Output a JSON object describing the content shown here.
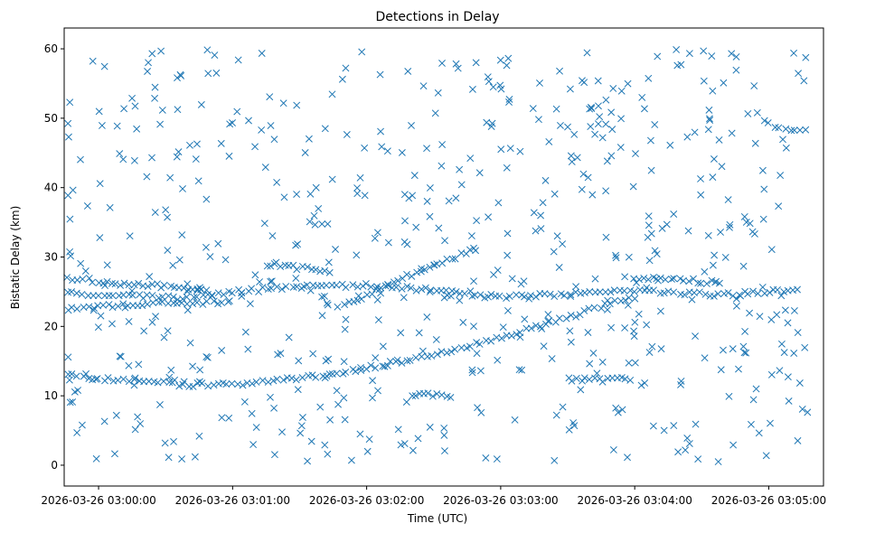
{
  "chart_data": {
    "type": "scatter",
    "title": "Detections in Delay",
    "xlabel": "Time (UTC)",
    "ylabel": "Bistatic Delay (km)",
    "x_unit": "seconds after 2026-03-26 03:00:00 UTC",
    "xlim": [
      -15.4,
      324.5
    ],
    "ylim": [
      -3.0,
      63.0
    ],
    "xticks": [
      {
        "value": 0,
        "label": "2026-03-26 03:00:00"
      },
      {
        "value": 60,
        "label": "2026-03-26 03:01:00"
      },
      {
        "value": 120,
        "label": "2026-03-26 03:02:00"
      },
      {
        "value": 180,
        "label": "2026-03-26 03:03:00"
      },
      {
        "value": 240,
        "label": "2026-03-26 03:04:00"
      },
      {
        "value": 300,
        "label": "2026-03-26 03:05:00"
      }
    ],
    "yticks": [
      0,
      10,
      20,
      30,
      40,
      50,
      60
    ],
    "marker": "x",
    "color": "#1f77b4",
    "series": [
      {
        "name": "detections",
        "description": "Scatter of radar detections; values sampled along visible tracks plus background clutter",
        "tracks": [
          {
            "name": "track-rising-low",
            "x": [
              -14,
              0,
              20,
              40,
              60,
              80,
              100,
              120,
              140,
              160,
              180,
              200,
              220,
              240
            ],
            "y": [
              13.0,
              12.5,
              12.0,
              11.6,
              11.7,
              12.2,
              12.9,
              14.0,
              15.3,
              16.8,
              18.5,
              20.3,
              22.3,
              24.5
            ]
          },
          {
            "name": "track-flat-25",
            "x": [
              -14,
              0,
              20,
              40,
              60,
              80,
              100,
              120,
              140,
              160,
              180,
              200,
              220,
              240,
              260,
              280,
              300,
              315
            ],
            "y": [
              25.0,
              24.6,
              24.3,
              24.0,
              25.0,
              25.5,
              25.8,
              26.0,
              25.5,
              24.8,
              24.2,
              24.5,
              25.0,
              25.2,
              24.8,
              24.5,
              25.0,
              25.2
            ]
          },
          {
            "name": "track-falling-26",
            "x": [
              -14,
              0,
              10,
              20,
              30,
              40,
              50
            ],
            "y": [
              27.0,
              26.5,
              26.2,
              26.0,
              25.8,
              25.6,
              25.4
            ]
          },
          {
            "name": "track-23-band",
            "x": [
              -14,
              0,
              20,
              40,
              60
            ],
            "y": [
              22.5,
              22.8,
              23.2,
              23.5,
              23.3
            ]
          },
          {
            "name": "track-rising-mid",
            "x": [
              110,
              120,
              130,
              140,
              150,
              160,
              170
            ],
            "y": [
              23.0,
              24.5,
              26.0,
              27.5,
              28.8,
              30.0,
              31.5
            ]
          },
          {
            "name": "track-28-short",
            "x": [
              75,
              85,
              95,
              105
            ],
            "y": [
              29.0,
              28.6,
              28.2,
              27.8
            ]
          },
          {
            "name": "track-late-27",
            "x": [
              240,
              250,
              260,
              270,
              280
            ],
            "y": [
              26.8,
              26.9,
              26.7,
              26.5,
              26.2
            ]
          },
          {
            "name": "track-late-48",
            "x": [
              295,
              300,
              305,
              312,
              318
            ],
            "y": [
              50.5,
              49.2,
              48.6,
              48.4,
              48.2
            ]
          },
          {
            "name": "track-12-late",
            "x": [
              210,
              220,
              230,
              240
            ],
            "y": [
              12.4,
              12.3,
              12.3,
              12.4
            ]
          },
          {
            "name": "track-10-mid",
            "x": [
              140,
              150,
              160
            ],
            "y": [
              10.2,
              10.1,
              10.0
            ]
          },
          {
            "name": "track-34-short",
            "x": [
              95,
              100,
              105
            ],
            "y": [
              35.0,
              34.7,
              34.4
            ]
          }
        ],
        "clutter": {
          "count": 600,
          "x_range": [
            -14,
            318
          ],
          "y_range": [
            0.5,
            60
          ]
        }
      }
    ]
  }
}
